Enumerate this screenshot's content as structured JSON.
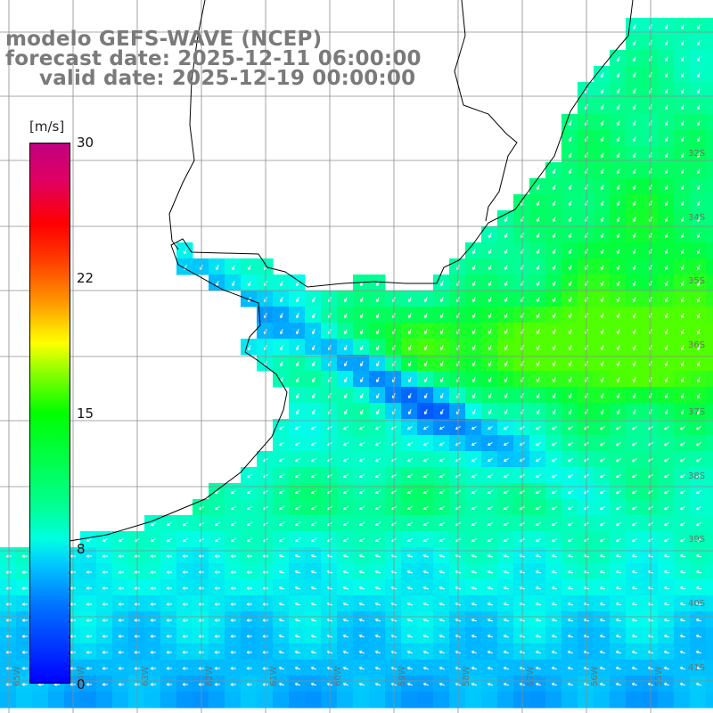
{
  "title": {
    "line1": "modelo GEFS-WAVE (NCEP)",
    "line2": "forecast date: 2025-12-11 06:00:00",
    "line3": "valid date: 2025-12-19 00:00:00"
  },
  "colorbar": {
    "unit": "[m/s]",
    "ticks": [
      "30",
      "22",
      "15",
      "8",
      "0"
    ],
    "min": 0,
    "max": 30,
    "colors": [
      "#0000ff",
      "#0070ff",
      "#00c8ff",
      "#00ffe0",
      "#00ff90",
      "#00ff00",
      "#80ff00",
      "#ffff00",
      "#ffa000",
      "#ff4000",
      "#ff0000",
      "#c00080"
    ]
  },
  "map": {
    "field": "wind speed",
    "land_color": "#ffffff",
    "grid_color": "#8c8c8c",
    "coast_color": "#000000",
    "latitude_labels": [
      "32S",
      "34S",
      "35S",
      "36S",
      "37S",
      "38S",
      "39S",
      "40S",
      "41S"
    ],
    "longitude_labels": [
      "65W",
      "64W",
      "63W",
      "62W",
      "61W",
      "60W",
      "59W",
      "58W",
      "57W",
      "56W",
      "55W"
    ]
  }
}
